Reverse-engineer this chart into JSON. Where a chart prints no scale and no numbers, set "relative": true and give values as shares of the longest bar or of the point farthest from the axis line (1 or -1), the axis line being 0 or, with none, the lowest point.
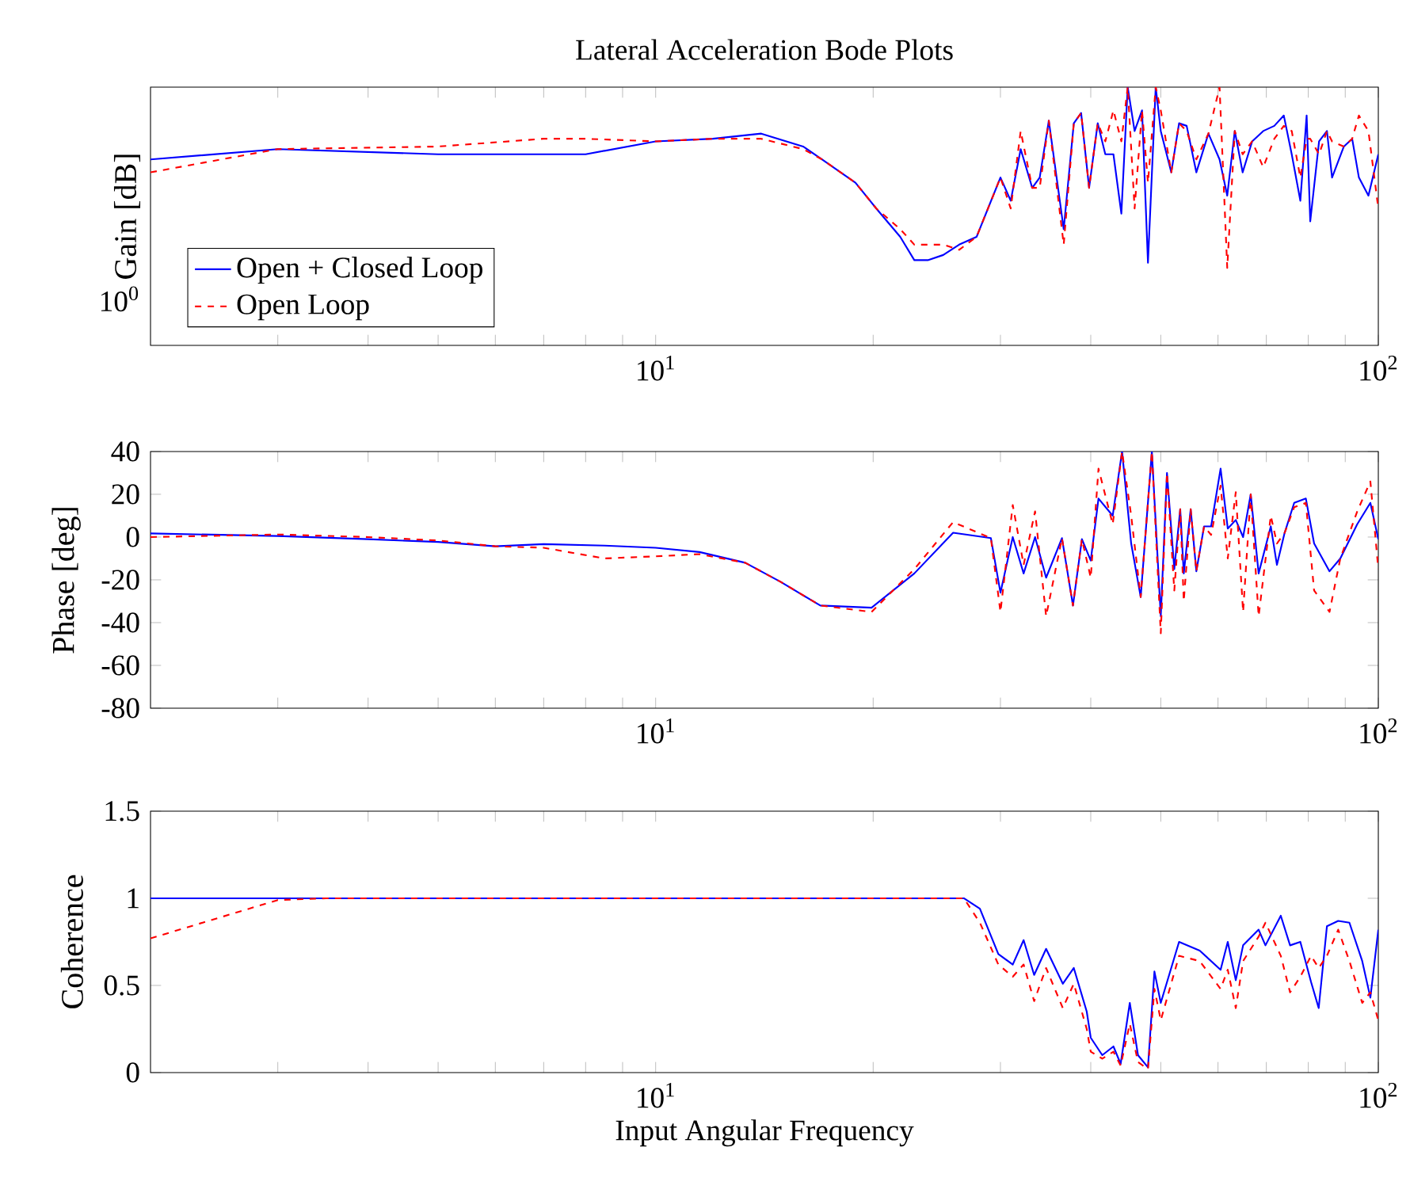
{
  "chart_data": [
    {
      "type": "line",
      "title": "Lateral Acceleration Bode Plots",
      "ylabel": "Gain [dB]",
      "log": "x",
      "legend": "bottom left",
      "relative": true,
      "annotations": [
        "10$^{0}$"
      ],
      "xlim": [
        2,
        100
      ],
      "xticks": [
        {
          "value": 3,
          "label": null
        },
        {
          "value": 4,
          "label": null
        },
        {
          "value": 5,
          "label": null
        },
        {
          "value": 6,
          "label": null
        },
        {
          "value": 7,
          "label": null
        },
        {
          "value": 8,
          "label": null
        },
        {
          "value": 9,
          "label": null
        },
        {
          "value": 10,
          "label": "10$^{1}$"
        },
        {
          "value": 20,
          "label": null
        },
        {
          "value": 30,
          "label": null
        },
        {
          "value": 40,
          "label": null
        },
        {
          "value": 50,
          "label": null
        },
        {
          "value": 60,
          "label": null
        },
        {
          "value": 70,
          "label": null
        },
        {
          "value": 80,
          "label": null
        },
        {
          "value": 90,
          "label": null
        },
        {
          "value": 100,
          "label": "10$^{2}$"
        }
      ],
      "x": [
        2,
        3,
        5,
        7,
        8,
        10,
        12,
        14,
        16,
        17,
        18.9,
        20.2,
        21.8,
        22.8,
        23.8,
        25,
        26.3,
        27.8,
        30,
        31,
        32,
        33.2,
        34,
        35,
        36.7,
        37.9,
        38.8,
        39.8,
        40.9,
        41.9,
        43,
        44.1,
        45,
        46,
        47.1,
        48,
        49.2,
        50,
        51.7,
        53,
        54.3,
        56,
        58.2,
        60.3,
        61.8,
        63.3,
        64.9,
        66.9,
        69.3,
        71.8,
        74,
        75.9,
        78,
        79.6,
        80.5,
        82.8,
        84.9,
        86.3,
        89.6,
        92,
        94,
        96.9,
        100
      ],
      "series": [
        {
          "name": "Open + Closed Loop",
          "color": "#0000ff",
          "line_style": "solid",
          "values": [
            0.72,
            0.76,
            0.74,
            0.74,
            0.74,
            0.79,
            0.8,
            0.82,
            0.77,
            0.72,
            0.63,
            0.53,
            0.42,
            0.33,
            0.33,
            0.35,
            0.39,
            0.42,
            0.65,
            0.56,
            0.76,
            0.61,
            0.65,
            0.87,
            0.45,
            0.86,
            0.9,
            0.61,
            0.86,
            0.74,
            0.74,
            0.51,
            1,
            0.83,
            0.91,
            0.32,
            1,
            0.83,
            0.67,
            0.86,
            0.85,
            0.67,
            0.82,
            0.72,
            0.58,
            0.83,
            0.67,
            0.79,
            0.83,
            0.85,
            0.89,
            0.74,
            0.56,
            0.89,
            0.48,
            0.79,
            0.83,
            0.65,
            0.77,
            0.8,
            0.65,
            0.58,
            0.74
          ]
        },
        {
          "name": "Open Loop",
          "color": "#ff0000",
          "line_style": "dashed",
          "values": [
            0.67,
            0.76,
            0.77,
            0.8,
            0.8,
            0.79,
            0.8,
            0.8,
            0.76,
            0.72,
            0.63,
            0.53,
            0.45,
            0.39,
            0.39,
            0.39,
            0.37,
            0.42,
            0.65,
            0.53,
            0.83,
            0.61,
            0.61,
            0.87,
            0.39,
            0.86,
            0.9,
            0.61,
            0.86,
            0.79,
            0.91,
            0.79,
            1,
            0.53,
            0.91,
            0.63,
            1,
            0.91,
            0.67,
            0.86,
            0.83,
            0.72,
            0.82,
            1,
            0.3,
            0.83,
            0.74,
            0.79,
            0.69,
            0.8,
            0.85,
            0.83,
            0.65,
            0.8,
            0.8,
            0.74,
            0.83,
            0.79,
            0.77,
            0.8,
            0.89,
            0.83,
            0.53
          ]
        }
      ]
    },
    {
      "type": "line",
      "ylabel": "Phase [deg]",
      "log": "x",
      "xlim": [
        2,
        100
      ],
      "xticks": [
        {
          "value": 3,
          "label": null
        },
        {
          "value": 4,
          "label": null
        },
        {
          "value": 5,
          "label": null
        },
        {
          "value": 6,
          "label": null
        },
        {
          "value": 7,
          "label": null
        },
        {
          "value": 8,
          "label": null
        },
        {
          "value": 9,
          "label": null
        },
        {
          "value": 10,
          "label": "10$^{1}$"
        },
        {
          "value": 20,
          "label": null
        },
        {
          "value": 30,
          "label": null
        },
        {
          "value": 40,
          "label": null
        },
        {
          "value": 50,
          "label": null
        },
        {
          "value": 60,
          "label": null
        },
        {
          "value": 70,
          "label": null
        },
        {
          "value": 80,
          "label": null
        },
        {
          "value": 90,
          "label": null
        },
        {
          "value": 100,
          "label": "10$^{2}$"
        }
      ],
      "ylim": [
        -80,
        40
      ],
      "yticks": [
        -80,
        -60,
        -40,
        -20,
        0,
        20,
        40
      ],
      "x": [
        2,
        3,
        4,
        5,
        6,
        7,
        8.5,
        10,
        11.5,
        13.3,
        14.9,
        16.9,
        19.9,
        22.8,
        25.8,
        29.1,
        30,
        31.2,
        32.3,
        33.5,
        34.7,
        36.5,
        37.8,
        38.9,
        40,
        41,
        42.9,
        44.2,
        45.5,
        46.9,
        48.6,
        50,
        51,
        52.2,
        53.2,
        53.8,
        55,
        56,
        57.4,
        58.7,
        60.5,
        61.9,
        63.5,
        65,
        66.6,
        68.3,
        71,
        72.4,
        74.2,
        76.5,
        79.4,
        81.5,
        85.6,
        88.6,
        93.5,
        97.5,
        100
      ],
      "series": [
        {
          "color": "#0000ff",
          "line_style": "solid",
          "values": [
            1.7,
            0.5,
            -1,
            -2.3,
            -4.3,
            -3.3,
            -4,
            -5,
            -7,
            -12,
            -21,
            -32,
            -33,
            -17,
            2,
            -0.5,
            -26,
            0,
            -17,
            0,
            -19,
            -0.5,
            -32,
            -1,
            -11,
            18,
            10,
            40,
            -3,
            -28,
            40,
            -37,
            30,
            -15,
            13,
            -17,
            13,
            -16,
            5,
            5,
            32,
            4,
            8,
            0,
            20,
            -17,
            5,
            -13,
            2,
            16,
            18,
            -3,
            -16,
            -10,
            6,
            16,
            -1
          ]
        },
        {
          "color": "#ff0000",
          "line_style": "dashed",
          "values": [
            0,
            1.2,
            0,
            -1.6,
            -4.3,
            -5,
            -10,
            -9,
            -8,
            -12,
            -21,
            -32,
            -35,
            -15,
            7,
            -0.5,
            -35,
            15,
            -13,
            12,
            -37,
            -0.5,
            -32,
            -1,
            -19,
            32,
            6,
            40,
            10,
            -28,
            40,
            -45,
            30,
            -25,
            13,
            -30,
            13,
            -16,
            5,
            1,
            24,
            -10,
            21,
            -35,
            20,
            -37,
            10,
            -3,
            2,
            14,
            16,
            -25,
            -35,
            -10,
            12,
            26,
            -15
          ]
        }
      ]
    },
    {
      "type": "line",
      "ylabel": "Coherence",
      "xlabel": "Input Angular Frequency",
      "log": "x",
      "xlim": [
        2,
        100
      ],
      "xticks": [
        {
          "value": 3,
          "label": null
        },
        {
          "value": 4,
          "label": null
        },
        {
          "value": 5,
          "label": null
        },
        {
          "value": 6,
          "label": null
        },
        {
          "value": 7,
          "label": null
        },
        {
          "value": 8,
          "label": null
        },
        {
          "value": 9,
          "label": null
        },
        {
          "value": 10,
          "label": "10$^{1}$"
        },
        {
          "value": 20,
          "label": null
        },
        {
          "value": 30,
          "label": null
        },
        {
          "value": 40,
          "label": null
        },
        {
          "value": 50,
          "label": null
        },
        {
          "value": 60,
          "label": null
        },
        {
          "value": 70,
          "label": null
        },
        {
          "value": 80,
          "label": null
        },
        {
          "value": 90,
          "label": null
        },
        {
          "value": 100,
          "label": "10$^{2}$"
        }
      ],
      "ylim": [
        0,
        1.5
      ],
      "yticks": [
        0,
        0.5,
        1,
        1.5
      ],
      "x": [
        2,
        3,
        3.5,
        10,
        20,
        26.7,
        28.1,
        29.8,
        31.2,
        32.3,
        33.4,
        34.7,
        36.6,
        37.9,
        39.5,
        40,
        41.5,
        43,
        44,
        45.3,
        46.5,
        48,
        49,
        50,
        53,
        56.6,
        60.5,
        61.9,
        63.5,
        65,
        68.3,
        69.8,
        73.3,
        75.5,
        78,
        80.7,
        82.7,
        84.9,
        88,
        91.2,
        95,
        97.5,
        100
      ],
      "series": [
        {
          "color": "#0000ff",
          "line_style": "solid",
          "values": [
            1,
            1,
            1,
            1,
            1,
            1,
            0.94,
            0.68,
            0.62,
            0.76,
            0.56,
            0.71,
            0.51,
            0.6,
            0.35,
            0.2,
            0.1,
            0.15,
            0.05,
            0.4,
            0.1,
            0.03,
            0.58,
            0.4,
            0.75,
            0.7,
            0.59,
            0.75,
            0.53,
            0.73,
            0.82,
            0.73,
            0.9,
            0.73,
            0.75,
            0.52,
            0.37,
            0.84,
            0.87,
            0.86,
            0.64,
            0.43,
            0.82
          ]
        },
        {
          "color": "#ff0000",
          "line_style": "dashed",
          "values": [
            0.77,
            0.99,
            1,
            1,
            1,
            1,
            0.86,
            0.62,
            0.55,
            0.62,
            0.41,
            0.6,
            0.37,
            0.51,
            0.25,
            0.12,
            0.08,
            0.12,
            0.04,
            0.28,
            0.06,
            0.02,
            0.48,
            0.3,
            0.67,
            0.64,
            0.48,
            0.59,
            0.37,
            0.64,
            0.78,
            0.86,
            0.67,
            0.46,
            0.55,
            0.67,
            0.6,
            0.67,
            0.82,
            0.64,
            0.4,
            0.46,
            0.3
          ]
        }
      ]
    }
  ]
}
